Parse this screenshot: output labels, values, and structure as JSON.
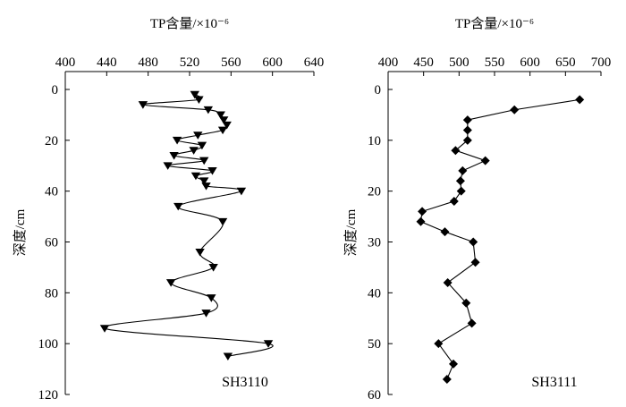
{
  "chart_data": [
    {
      "type": "line",
      "panel_label": "SH3110",
      "xlabel": "TP含量/×10⁻⁶",
      "ylabel": "深度/cm",
      "x_axis_position": "top",
      "y_inverted": true,
      "xlim": [
        400,
        640
      ],
      "ylim": [
        0,
        120
      ],
      "xticks": [
        400,
        440,
        480,
        520,
        560,
        600,
        640
      ],
      "yticks": [
        0,
        20,
        40,
        60,
        80,
        100,
        120
      ],
      "grid": false,
      "marker": "triangle-down",
      "smooth": true,
      "series": [
        {
          "points": [
            [
              525,
              2
            ],
            [
              529,
              4
            ],
            [
              475,
              6
            ],
            [
              538,
              8
            ],
            [
              550,
              10
            ],
            [
              553,
              12
            ],
            [
              556,
              14
            ],
            [
              552,
              16
            ],
            [
              528,
              18
            ],
            [
              508,
              20
            ],
            [
              532,
              22
            ],
            [
              524,
              24
            ],
            [
              505,
              26
            ],
            [
              534,
              28
            ],
            [
              499,
              30
            ],
            [
              542,
              32
            ],
            [
              526,
              34
            ],
            [
              534,
              36
            ],
            [
              536,
              38
            ],
            [
              570,
              40
            ],
            [
              509,
              46
            ],
            [
              552,
              52
            ],
            [
              530,
              64
            ],
            [
              543,
              70
            ],
            [
              502,
              76
            ],
            [
              541,
              82
            ],
            [
              536,
              88
            ],
            [
              438,
              94
            ],
            [
              596,
              100
            ],
            [
              557,
              105
            ]
          ]
        }
      ]
    },
    {
      "type": "line",
      "panel_label": "SH3111",
      "xlabel": "TP含量/×10⁻⁶",
      "ylabel": "深度/cm",
      "x_axis_position": "top",
      "y_inverted": true,
      "xlim": [
        400,
        700
      ],
      "ylim": [
        0,
        60
      ],
      "xticks": [
        400,
        450,
        500,
        550,
        600,
        650,
        700
      ],
      "yticks": [
        0,
        10,
        20,
        30,
        40,
        50,
        60
      ],
      "grid": false,
      "marker": "diamond",
      "smooth": false,
      "series": [
        {
          "points": [
            [
              670,
              2
            ],
            [
              578,
              4
            ],
            [
              512,
              6
            ],
            [
              512,
              8
            ],
            [
              512,
              10
            ],
            [
              495,
              12
            ],
            [
              537,
              14
            ],
            [
              505,
              16
            ],
            [
              502,
              18
            ],
            [
              503,
              20
            ],
            [
              493,
              22
            ],
            [
              448,
              24
            ],
            [
              446,
              26
            ],
            [
              480,
              28
            ],
            [
              520,
              30
            ],
            [
              523,
              34
            ],
            [
              484,
              38
            ],
            [
              510,
              42
            ],
            [
              518,
              46
            ],
            [
              471,
              50
            ],
            [
              492,
              54
            ],
            [
              483,
              57
            ]
          ]
        }
      ]
    }
  ]
}
